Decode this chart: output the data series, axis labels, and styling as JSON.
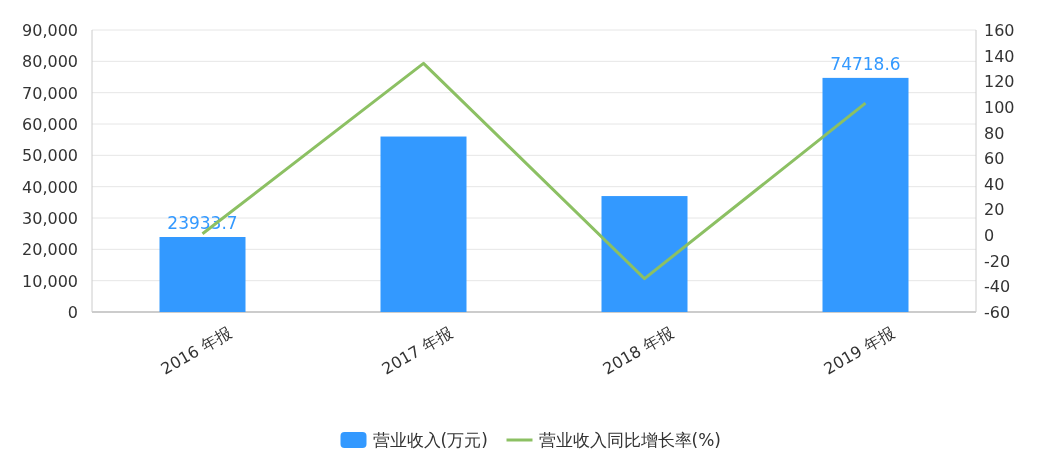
{
  "chart_data": {
    "type": "bar",
    "categories": [
      "2016 年报",
      "2017 年报",
      "2018 年报",
      "2019 年报"
    ],
    "series": [
      {
        "name": "营业收入(万元)",
        "color": "#3399ff",
        "values": [
          23933.7,
          56000,
          37000,
          74718.6
        ],
        "value_labels": [
          "23933.7",
          null,
          null,
          "74718.6"
        ]
      },
      {
        "name": "营业收入同比增长率(%)",
        "type": "line",
        "axis": "y2",
        "color": "#8cc063",
        "values": [
          1,
          134,
          -34,
          103
        ]
      }
    ],
    "ylim": [
      0,
      90000
    ],
    "yticks": [
      0,
      {
        "value": 10000,
        "label": "10,000"
      },
      {
        "value": 20000,
        "label": "20,000"
      },
      {
        "value": 30000,
        "label": "30,000"
      },
      {
        "value": 40000,
        "label": "40,000"
      },
      {
        "value": 50000,
        "label": "50,000"
      },
      {
        "value": 60000,
        "label": "60,000"
      },
      {
        "value": 70000,
        "label": "70,000"
      },
      {
        "value": 80000,
        "label": "80,000"
      },
      {
        "value": 90000,
        "label": "90,000"
      }
    ],
    "y2lim": [
      -60,
      160
    ],
    "y2ticks": [
      -60,
      -40,
      -20,
      0,
      20,
      40,
      60,
      80,
      100,
      120,
      140,
      160
    ],
    "grid": "y",
    "legend": "bottom",
    "marker": "none",
    "line_style": "solid"
  }
}
